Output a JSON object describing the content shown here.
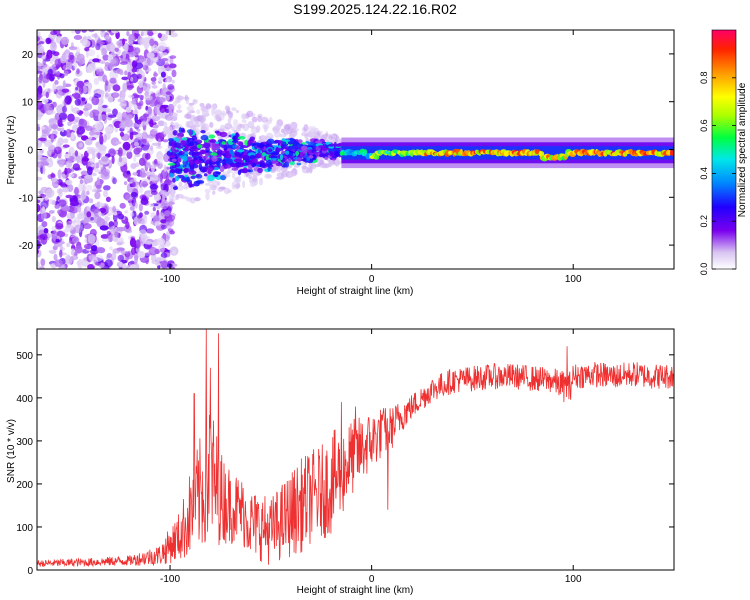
{
  "title": "S199.2025.124.22.16.R02",
  "chart_data": [
    {
      "type": "heatmap",
      "panel": "top",
      "xlabel": "Height of straight line (km)",
      "ylabel": "Frequency (Hz)",
      "xlim": [
        -166,
        150
      ],
      "ylim": [
        -25,
        25
      ],
      "xticks": [
        -100,
        0,
        100
      ],
      "xtick_labels": [
        "-100",
        "0",
        "100"
      ],
      "yticks": [
        -20,
        -10,
        0,
        10,
        20
      ],
      "ytick_labels": [
        "-20",
        "-10",
        "0",
        "10",
        "20"
      ],
      "description_of_signal": [
        {
          "x_range": [
            -166,
            -100
          ],
          "freq_spread_hz": 25,
          "amplitude": "low (0.0-0.2)"
        },
        {
          "x_range": [
            -100,
            -15
          ],
          "freq_spread_hz": 8,
          "amplitude": "0.1-0.5"
        },
        {
          "x_range": [
            -15,
            150
          ],
          "freq_center_hz": 0,
          "freq_spread_hz": 1.5,
          "amplitude": "0.4-1.0"
        }
      ],
      "colorbar": {
        "label": "Normalized spectral amplitude",
        "lim": [
          0,
          1
        ],
        "ticks": [
          0.0,
          0.2,
          0.4,
          0.6,
          0.8
        ],
        "tick_labels": [
          "0.0",
          "0.2",
          "0.4",
          "0.6",
          "0.8"
        ]
      }
    },
    {
      "type": "line",
      "panel": "bottom",
      "xlabel": "Height of straight line (km)",
      "ylabel": "SNR (10 * v/v)",
      "xlim": [
        -166,
        150
      ],
      "ylim": [
        0,
        560
      ],
      "xticks": [
        -100,
        0,
        100
      ],
      "xtick_labels": [
        "-100",
        "0",
        "100"
      ],
      "yticks": [
        0,
        100,
        200,
        300,
        400,
        500
      ],
      "ytick_labels": [
        "0",
        "100",
        "200",
        "300",
        "400",
        "500"
      ],
      "color": "#ee3030",
      "series": [
        {
          "name": "SNR",
          "x": [
            -166,
            -140,
            -120,
            -105,
            -95,
            -88,
            -82,
            -80,
            -78,
            -75,
            -70,
            -65,
            -60,
            -55,
            -50,
            -45,
            -40,
            -35,
            -30,
            -25,
            -20,
            -15,
            -10,
            -5,
            0,
            5,
            10,
            15,
            20,
            25,
            30,
            40,
            50,
            60,
            70,
            80,
            90,
            98,
            100,
            110,
            120,
            130,
            140,
            150
          ],
          "base": [
            15,
            18,
            22,
            35,
            80,
            150,
            200,
            230,
            200,
            170,
            150,
            140,
            110,
            100,
            90,
            110,
            130,
            150,
            170,
            180,
            200,
            230,
            260,
            280,
            300,
            320,
            330,
            360,
            380,
            400,
            420,
            440,
            445,
            450,
            450,
            445,
            440,
            420,
            450,
            455,
            450,
            455,
            450,
            450
          ],
          "noise": [
            8,
            10,
            12,
            25,
            60,
            120,
            150,
            180,
            150,
            110,
            90,
            80,
            80,
            80,
            80,
            90,
            100,
            110,
            110,
            110,
            120,
            110,
            90,
            80,
            70,
            60,
            50,
            40,
            30,
            30,
            30,
            30,
            30,
            30,
            30,
            30,
            30,
            40,
            30,
            30,
            30,
            30,
            30,
            30
          ],
          "peaks": [
            [
              -82,
              560
            ],
            [
              -76,
              550
            ],
            [
              -80,
              470
            ],
            [
              -88,
              410
            ],
            [
              -15,
              390
            ],
            [
              -8,
              380
            ],
            [
              5,
              360
            ],
            [
              8,
              140
            ],
            [
              97,
              520
            ]
          ]
        }
      ]
    }
  ]
}
